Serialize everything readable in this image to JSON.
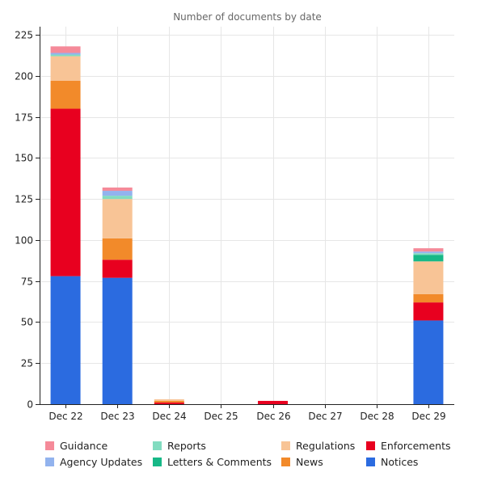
{
  "chart_data": {
    "type": "bar",
    "stacked": true,
    "title": "Number of documents by date",
    "xlabel": "",
    "ylabel": "",
    "ylim": [
      0,
      230
    ],
    "yticks": [
      0,
      25,
      50,
      75,
      100,
      125,
      150,
      175,
      200,
      225
    ],
    "categories": [
      "Dec 22",
      "Dec 23",
      "Dec 24",
      "Dec 25",
      "Dec 26",
      "Dec 27",
      "Dec 28",
      "Dec 29"
    ],
    "grid": true,
    "legend_position": "bottom",
    "series": [
      {
        "name": "Notices",
        "color": "#2b6be0",
        "values": [
          78,
          77,
          0,
          0,
          0,
          0,
          0,
          51
        ]
      },
      {
        "name": "Enforcements",
        "color": "#e8001f",
        "values": [
          102,
          11,
          1,
          0,
          2,
          0,
          0,
          11
        ]
      },
      {
        "name": "News",
        "color": "#f28a2a",
        "values": [
          17,
          13,
          1,
          0,
          0,
          0,
          0,
          5
        ]
      },
      {
        "name": "Regulations",
        "color": "#f8c496",
        "values": [
          15,
          24,
          1,
          0,
          0,
          0,
          0,
          20
        ]
      },
      {
        "name": "Letters & Comments",
        "color": "#17b887",
        "values": [
          0,
          0,
          0,
          0,
          0,
          0,
          0,
          4
        ]
      },
      {
        "name": "Reports",
        "color": "#82dcc0",
        "values": [
          1,
          2,
          0,
          0,
          0,
          0,
          0,
          1
        ]
      },
      {
        "name": "Agency Updates",
        "color": "#92b3ee",
        "values": [
          1,
          3,
          0,
          0,
          0,
          0,
          0,
          1
        ]
      },
      {
        "name": "Guidance",
        "color": "#f58a99",
        "values": [
          4,
          2,
          0,
          0,
          0,
          0,
          0,
          2
        ]
      }
    ],
    "legend_order": [
      "Guidance",
      "Reports",
      "Regulations",
      "Enforcements",
      "Agency Updates",
      "Letters & Comments",
      "News",
      "Notices"
    ]
  }
}
